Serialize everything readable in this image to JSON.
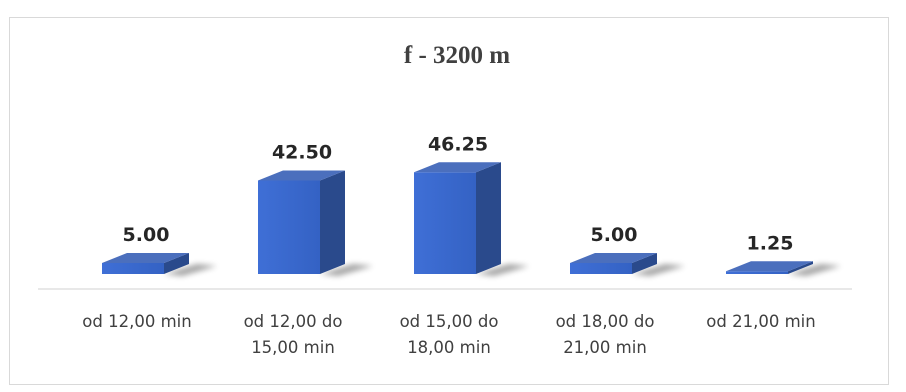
{
  "chart_data": {
    "type": "bar",
    "title": "f - 3200 m",
    "categories": [
      [
        "od 12,00 min"
      ],
      [
        "od 12,00 do",
        "15,00 min"
      ],
      [
        "od 15,00 do",
        "18,00 min"
      ],
      [
        "od 18,00 do",
        "21,00 min"
      ],
      [
        "od 21,00 min"
      ]
    ],
    "values": [
      5.0,
      42.5,
      46.25,
      5.0,
      1.25
    ],
    "data_labels": [
      "5.00",
      "42.50",
      "46.25",
      "5.00",
      "1.25"
    ],
    "xlabel": "",
    "ylabel": "",
    "grid": false,
    "legend": "none",
    "bar_color": "#4472c4"
  }
}
